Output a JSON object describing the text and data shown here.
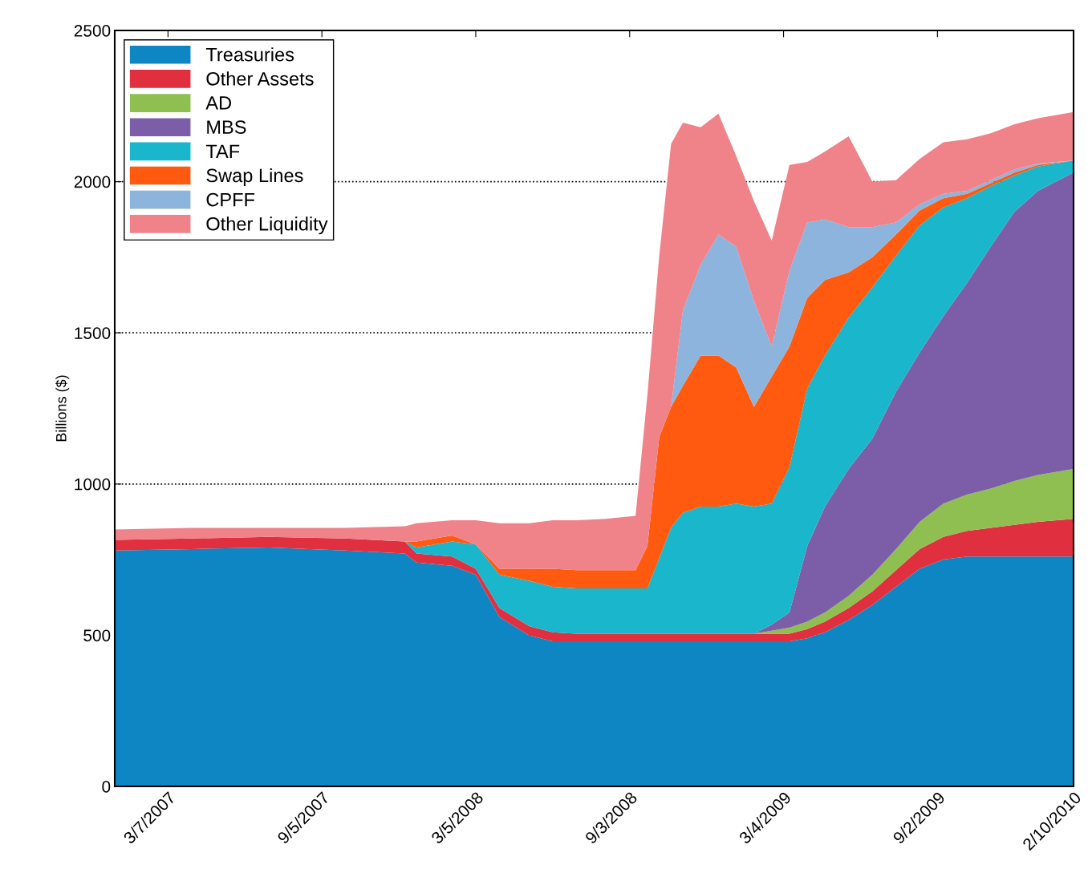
{
  "chart_data": {
    "type": "area",
    "stacked": true,
    "ylabel": "Billions ($)",
    "x": [
      "2007-01-03",
      "2007-04-04",
      "2007-07-04",
      "2007-10-03",
      "2007-12-12",
      "2007-12-26",
      "2008-02-06",
      "2008-03-05",
      "2008-04-02",
      "2008-05-07",
      "2008-06-04",
      "2008-07-02",
      "2008-08-06",
      "2008-09-10",
      "2008-09-24",
      "2008-10-08",
      "2008-10-22",
      "2008-11-05",
      "2008-11-26",
      "2008-12-17",
      "2009-01-07",
      "2009-01-28",
      "2009-02-18",
      "2009-03-11",
      "2009-04-01",
      "2009-04-22",
      "2009-05-20",
      "2009-06-17",
      "2009-07-15",
      "2009-08-12",
      "2009-09-09",
      "2009-10-07",
      "2009-11-04",
      "2009-12-02",
      "2009-12-30",
      "2010-02-10"
    ],
    "series": [
      {
        "name": "Treasuries",
        "color": "#0f86c4",
        "values": [
          780,
          785,
          790,
          780,
          770,
          740,
          730,
          700,
          560,
          500,
          480,
          480,
          480,
          480,
          480,
          480,
          480,
          480,
          480,
          480,
          480,
          480,
          480,
          480,
          490,
          510,
          550,
          600,
          660,
          720,
          750,
          760,
          760,
          760,
          760,
          760
        ]
      },
      {
        "name": "Other Assets",
        "color": "#e0303f",
        "values": [
          35,
          35,
          35,
          40,
          40,
          30,
          30,
          20,
          30,
          30,
          30,
          25,
          25,
          25,
          25,
          25,
          25,
          25,
          25,
          25,
          25,
          25,
          25,
          25,
          30,
          35,
          40,
          45,
          55,
          65,
          75,
          85,
          95,
          105,
          115,
          125
        ]
      },
      {
        "name": "AD",
        "color": "#8fbf50",
        "values": [
          0,
          0,
          0,
          0,
          0,
          0,
          0,
          0,
          0,
          0,
          0,
          0,
          0,
          0,
          0,
          0,
          0,
          0,
          0,
          0,
          0,
          0,
          10,
          20,
          25,
          30,
          40,
          55,
          70,
          90,
          110,
          120,
          130,
          145,
          155,
          165
        ]
      },
      {
        "name": "MBS",
        "color": "#7c5ea8",
        "values": [
          0,
          0,
          0,
          0,
          0,
          0,
          0,
          0,
          0,
          0,
          0,
          0,
          0,
          0,
          0,
          0,
          0,
          0,
          0,
          0,
          0,
          0,
          20,
          50,
          250,
          350,
          420,
          450,
          520,
          560,
          620,
          700,
          800,
          890,
          940,
          980
        ]
      },
      {
        "name": "TAF",
        "color": "#19b6cc",
        "values": [
          0,
          0,
          0,
          0,
          0,
          20,
          50,
          80,
          110,
          150,
          150,
          150,
          150,
          150,
          150,
          250,
          350,
          400,
          420,
          420,
          430,
          420,
          400,
          480,
          520,
          500,
          500,
          500,
          450,
          420,
          360,
          280,
          200,
          120,
          80,
          40
        ]
      },
      {
        "name": "Swap Lines",
        "color": "#ff5a10",
        "values": [
          0,
          0,
          0,
          0,
          0,
          20,
          20,
          0,
          20,
          40,
          60,
          60,
          60,
          60,
          140,
          400,
          400,
          420,
          500,
          500,
          450,
          330,
          420,
          400,
          300,
          250,
          150,
          100,
          70,
          50,
          30,
          15,
          10,
          10,
          5,
          0
        ]
      },
      {
        "name": "CPFF",
        "color": "#8cb4dc",
        "values": [
          0,
          0,
          0,
          0,
          0,
          0,
          0,
          0,
          0,
          0,
          0,
          0,
          0,
          0,
          0,
          0,
          0,
          250,
          300,
          400,
          400,
          350,
          100,
          250,
          250,
          200,
          150,
          100,
          40,
          20,
          15,
          10,
          10,
          10,
          5,
          0
        ]
      },
      {
        "name": "Other Liquidity",
        "color": "#f0828a",
        "values": [
          35,
          35,
          30,
          35,
          50,
          60,
          50,
          80,
          150,
          150,
          160,
          165,
          170,
          180,
          500,
          600,
          870,
          620,
          455,
          400,
          300,
          330,
          350,
          350,
          200,
          225,
          300,
          150,
          140,
          150,
          170,
          170,
          155,
          150,
          150,
          160
        ]
      }
    ],
    "xlim": [
      "2007-01-03",
      "2010-02-10"
    ],
    "xticks": [
      {
        "value": "2007-03-07",
        "label": "3/7/2007"
      },
      {
        "value": "2007-09-05",
        "label": "9/5/2007"
      },
      {
        "value": "2008-03-05",
        "label": "3/5/2008"
      },
      {
        "value": "2008-09-03",
        "label": "9/3/2008"
      },
      {
        "value": "2009-03-04",
        "label": "3/4/2009"
      },
      {
        "value": "2009-09-02",
        "label": "9/2/2009"
      },
      {
        "value": "2010-02-10",
        "label": "2/10/2010"
      }
    ],
    "ylim": [
      0,
      2500
    ],
    "yticks": [
      0,
      500,
      1000,
      1500,
      2000,
      2500
    ],
    "grid": "y",
    "line_style": "dotted",
    "legend": "top left"
  }
}
